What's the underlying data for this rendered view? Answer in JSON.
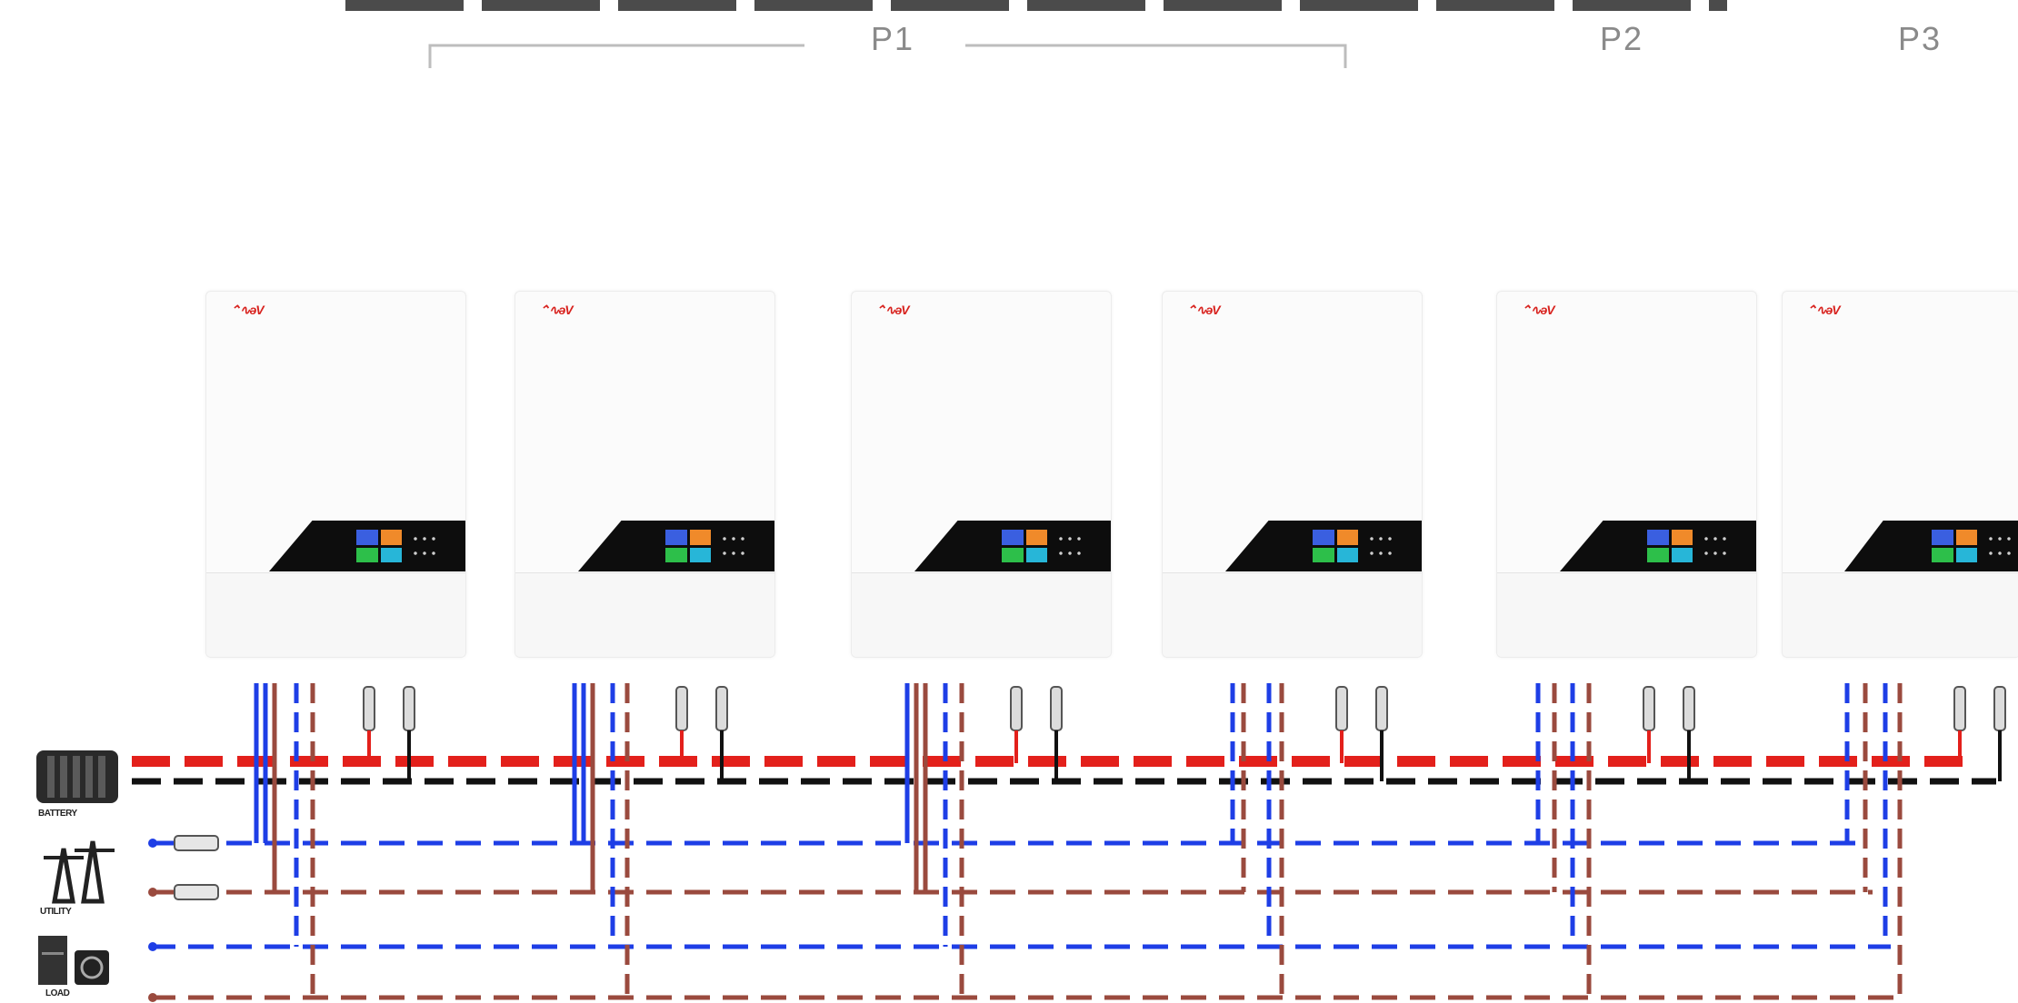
{
  "diagram": {
    "phase_labels": [
      "P1",
      "P2",
      "P3"
    ],
    "brand_mark": "⌃∿ǝV",
    "colors": {
      "battery_positive": "#e3201b",
      "battery_negative": "#111111",
      "line_L": "#9a4a3e",
      "line_N": "#1e3ee6",
      "phase_bracket": "#bdbdbd",
      "panel_bg": "#0d0d0d"
    },
    "side_icons": [
      {
        "icon": "battery-icon",
        "caption": "BATTERY"
      },
      {
        "icon": "utility-tower-icon",
        "caption": "UTILITY"
      },
      {
        "icon": "load-icon",
        "caption": "LOAD"
      }
    ],
    "inverters": [
      {
        "name": "inverter-1",
        "phase": "P1"
      },
      {
        "name": "inverter-2",
        "phase": "P1"
      },
      {
        "name": "inverter-3",
        "phase": "P1"
      },
      {
        "name": "inverter-4",
        "phase": "P1"
      },
      {
        "name": "inverter-5",
        "phase": "P2"
      },
      {
        "name": "inverter-6",
        "phase": "P3"
      }
    ]
  }
}
